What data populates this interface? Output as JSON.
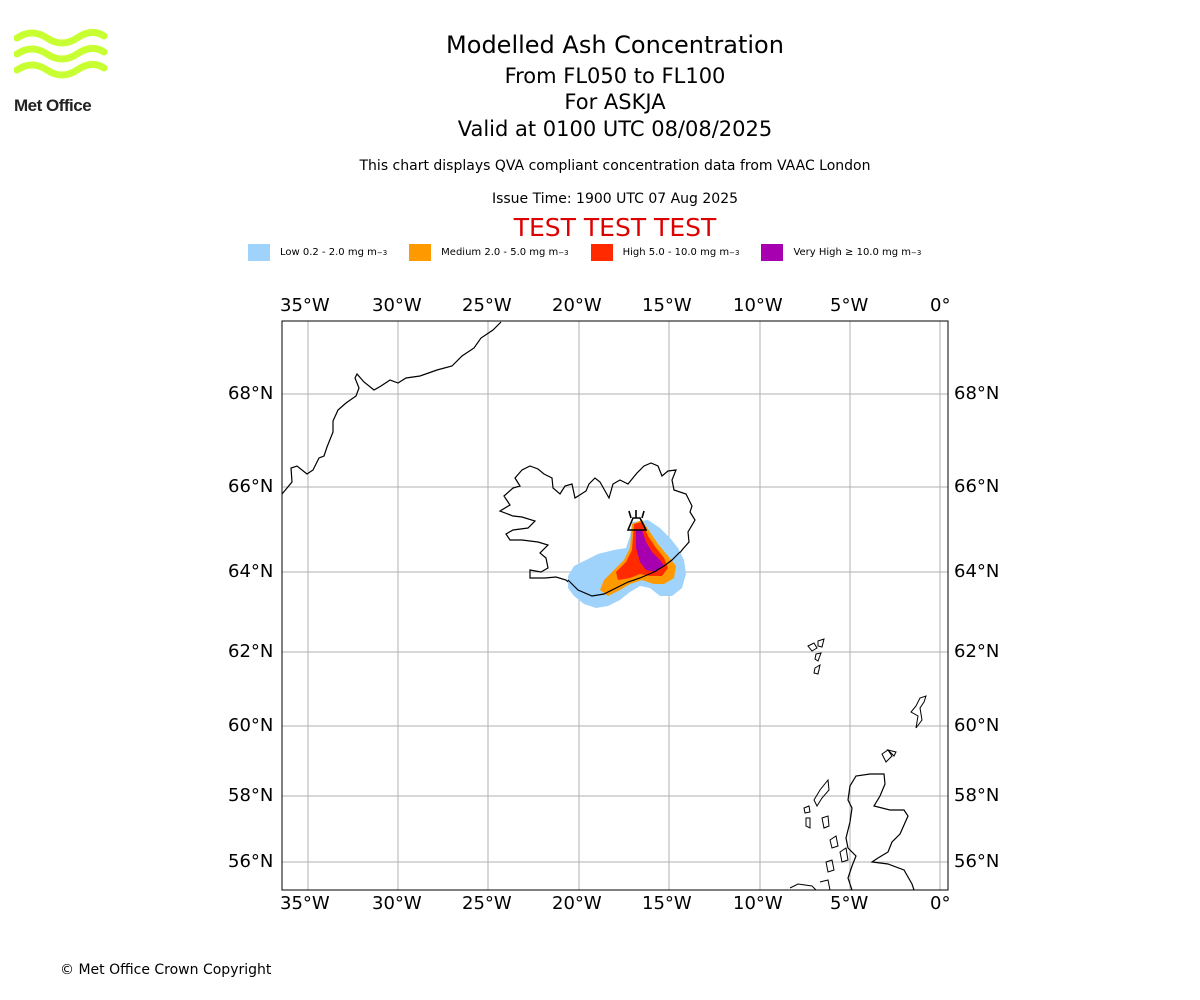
{
  "logo": {
    "text": "Met Office",
    "wave_color": "#c8ff33"
  },
  "header": {
    "title": "Modelled Ash Concentration",
    "levels": "From FL050 to FL100",
    "volcano": "For ASKJA",
    "valid": "Valid at 0100 UTC 08/08/2025",
    "subtitle": "This chart displays QVA compliant concentration data from VAAC London",
    "issue": "Issue Time: 1900 UTC 07 Aug 2025",
    "test_banner": "TEST TEST TEST",
    "test_color": "#dd0000"
  },
  "legend": [
    {
      "label": "Low 0.2 - 2.0 mg m",
      "sup": "−3",
      "color": "#9fd3fb"
    },
    {
      "label": "Medium 2.0 - 5.0 mg m",
      "sup": "−3",
      "color": "#ff9900"
    },
    {
      "label": "High 5.0 - 10.0 mg m",
      "sup": "−3",
      "color": "#ff2a00"
    },
    {
      "label": "Very High ≥ 10.0 mg m",
      "sup": "−3",
      "color": "#a600b0"
    }
  ],
  "map": {
    "lon_ticks": [
      "35°W",
      "30°W",
      "25°W",
      "20°W",
      "15°W",
      "10°W",
      "5°W",
      "0°"
    ],
    "lat_ticks": [
      "68°N",
      "66°N",
      "64°N",
      "62°N",
      "60°N",
      "58°N",
      "56°N"
    ],
    "volcano_marker": "volcano-icon",
    "gridlines": true
  },
  "footer": {
    "copyright": "© Met Office Crown Copyright"
  }
}
